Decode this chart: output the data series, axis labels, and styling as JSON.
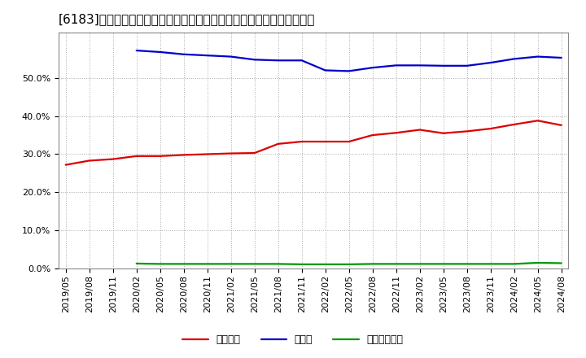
{
  "title": "[6183]　自己資本、のれん、繰延税金資産の総資産に対する比率の推移",
  "legend_labels": [
    "自己資本",
    "のれん",
    "繰延税金資産"
  ],
  "line_colors": [
    "#dd0000",
    "#0000cc",
    "#009900"
  ],
  "x_labels": [
    "2019/05",
    "2019/08",
    "2019/11",
    "2020/02",
    "2020/05",
    "2020/08",
    "2020/11",
    "2021/02",
    "2021/05",
    "2021/08",
    "2021/11",
    "2022/02",
    "2022/05",
    "2022/08",
    "2022/11",
    "2023/02",
    "2023/05",
    "2023/08",
    "2023/11",
    "2024/02",
    "2024/05",
    "2024/08"
  ],
  "jikoshihon": [
    0.272,
    0.283,
    0.287,
    0.295,
    0.295,
    0.298,
    0.3,
    0.302,
    0.303,
    0.327,
    0.333,
    0.333,
    0.333,
    0.35,
    0.356,
    0.364,
    0.355,
    0.36,
    0.367,
    0.378,
    0.388,
    0.376
  ],
  "noren": [
    null,
    null,
    null,
    0.572,
    0.568,
    0.562,
    0.559,
    0.556,
    0.548,
    0.546,
    0.546,
    0.52,
    0.518,
    0.527,
    0.533,
    0.533,
    0.532,
    0.532,
    0.54,
    0.55,
    0.556,
    0.553
  ],
  "kuenzeichkin": [
    null,
    null,
    null,
    0.013,
    0.012,
    0.012,
    0.012,
    0.012,
    0.012,
    0.012,
    0.011,
    0.011,
    0.011,
    0.012,
    0.012,
    0.012,
    0.012,
    0.012,
    0.012,
    0.012,
    0.015,
    0.014
  ],
  "ylim": [
    0.0,
    0.62
  ],
  "yticks": [
    0.0,
    0.1,
    0.2,
    0.3,
    0.4,
    0.5
  ],
  "background_color": "#ffffff",
  "grid_color": "#aaaaaa",
  "title_fontsize": 11,
  "legend_fontsize": 9,
  "tick_fontsize": 8
}
